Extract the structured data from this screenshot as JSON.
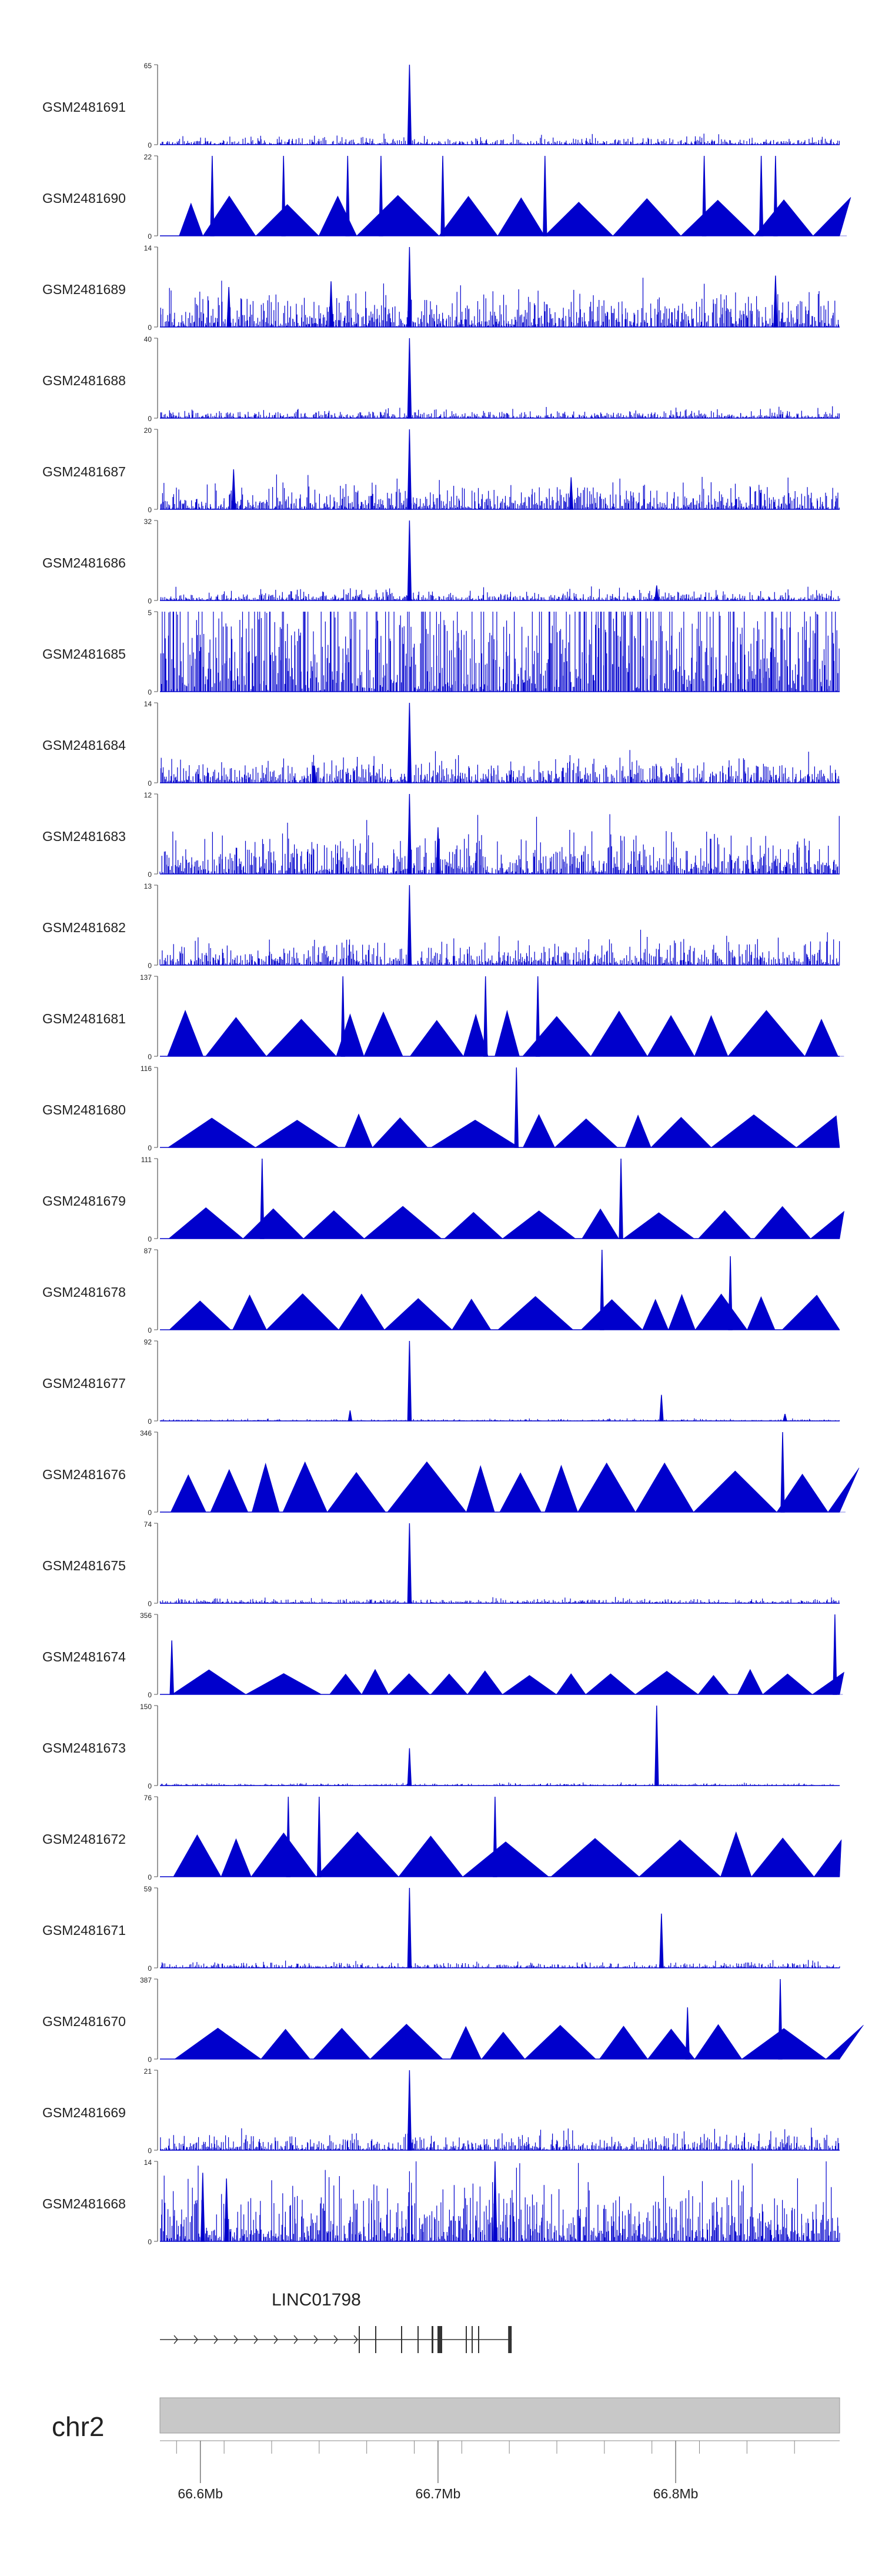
{
  "colors": {
    "track": "#0000CC",
    "axis": "#555555",
    "chrom_bar": "#C8C8C8",
    "gene": "#333333"
  },
  "chart_data": {
    "type": "area",
    "x_range_mb": [
      66.583,
      66.869
    ],
    "tracks": [
      {
        "name": "GSM2481691",
        "ymax": 65,
        "baseline": 3,
        "style": "dense",
        "peaks": [
          [
            66.688,
            65
          ]
        ]
      },
      {
        "name": "GSM2481690",
        "ymax": 22,
        "baseline": 10,
        "style": "triangles",
        "peaks": [
          [
            66.605,
            22
          ],
          [
            66.635,
            22
          ],
          [
            66.662,
            22
          ],
          [
            66.676,
            22
          ],
          [
            66.702,
            22
          ],
          [
            66.745,
            22
          ],
          [
            66.812,
            22
          ],
          [
            66.836,
            22
          ],
          [
            66.842,
            22
          ]
        ]
      },
      {
        "name": "GSM2481689",
        "ymax": 14,
        "baseline": 3,
        "style": "dense",
        "peaks": [
          [
            66.688,
            14
          ],
          [
            66.655,
            8
          ],
          [
            66.842,
            9
          ],
          [
            66.612,
            7
          ]
        ]
      },
      {
        "name": "GSM2481688",
        "ymax": 40,
        "baseline": 2,
        "style": "dense",
        "peaks": [
          [
            66.688,
            40
          ]
        ]
      },
      {
        "name": "GSM2481687",
        "ymax": 20,
        "baseline": 3,
        "style": "dense",
        "peaks": [
          [
            66.688,
            20
          ],
          [
            66.614,
            10
          ],
          [
            66.756,
            8
          ]
        ]
      },
      {
        "name": "GSM2481686",
        "ymax": 32,
        "baseline": 2,
        "style": "dense",
        "peaks": [
          [
            66.688,
            32
          ],
          [
            66.792,
            6
          ]
        ]
      },
      {
        "name": "GSM2481685",
        "ymax": 5,
        "baseline": 4,
        "style": "dense",
        "peaks": []
      },
      {
        "name": "GSM2481684",
        "ymax": 14,
        "baseline": 2,
        "style": "dense",
        "peaks": [
          [
            66.688,
            14
          ],
          [
            66.648,
            3
          ]
        ]
      },
      {
        "name": "GSM2481683",
        "ymax": 12,
        "baseline": 3,
        "style": "dense",
        "peaks": [
          [
            66.688,
            12
          ],
          [
            66.7,
            7
          ]
        ]
      },
      {
        "name": "GSM2481682",
        "ymax": 13,
        "baseline": 2,
        "style": "dense",
        "peaks": [
          [
            66.688,
            13
          ]
        ]
      },
      {
        "name": "GSM2481681",
        "ymax": 137,
        "baseline": 70,
        "style": "triangles",
        "peaks": [
          [
            66.66,
            137
          ],
          [
            66.72,
            137
          ],
          [
            66.742,
            137
          ]
        ]
      },
      {
        "name": "GSM2481680",
        "ymax": 116,
        "baseline": 45,
        "style": "triangles",
        "peaks": [
          [
            66.733,
            116
          ]
        ]
      },
      {
        "name": "GSM2481679",
        "ymax": 111,
        "baseline": 40,
        "style": "triangles",
        "peaks": [
          [
            66.626,
            111
          ],
          [
            66.777,
            111
          ]
        ]
      },
      {
        "name": "GSM2481678",
        "ymax": 87,
        "baseline": 35,
        "style": "triangles",
        "peaks": [
          [
            66.769,
            87
          ],
          [
            66.823,
            80
          ]
        ]
      },
      {
        "name": "GSM2481677",
        "ymax": 92,
        "baseline": 1,
        "style": "dense",
        "peaks": [
          [
            66.688,
            92
          ],
          [
            66.794,
            30
          ],
          [
            66.663,
            12
          ],
          [
            66.846,
            8
          ]
        ]
      },
      {
        "name": "GSM2481676",
        "ymax": 346,
        "baseline": 190,
        "style": "triangles",
        "peaks": [
          [
            66.845,
            346
          ]
        ]
      },
      {
        "name": "GSM2481675",
        "ymax": 74,
        "baseline": 2,
        "style": "dense",
        "peaks": [
          [
            66.688,
            74
          ]
        ]
      },
      {
        "name": "GSM2481674",
        "ymax": 356,
        "baseline": 100,
        "style": "triangles",
        "peaks": [
          [
            66.588,
            240
          ],
          [
            66.867,
            356
          ]
        ]
      },
      {
        "name": "GSM2481673",
        "ymax": 150,
        "baseline": 2,
        "style": "dense",
        "peaks": [
          [
            66.688,
            70
          ],
          [
            66.792,
            150
          ]
        ]
      },
      {
        "name": "GSM2481672",
        "ymax": 76,
        "baseline": 38,
        "style": "triangles",
        "peaks": [
          [
            66.637,
            76
          ],
          [
            66.65,
            76
          ],
          [
            66.724,
            76
          ]
        ]
      },
      {
        "name": "GSM2481671",
        "ymax": 59,
        "baseline": 2,
        "style": "dense",
        "peaks": [
          [
            66.688,
            59
          ],
          [
            66.794,
            40
          ]
        ]
      },
      {
        "name": "GSM2481670",
        "ymax": 387,
        "baseline": 150,
        "style": "triangles",
        "peaks": [
          [
            66.805,
            250
          ],
          [
            66.844,
            387
          ]
        ]
      },
      {
        "name": "GSM2481669",
        "ymax": 21,
        "baseline": 2,
        "style": "dense",
        "peaks": [
          [
            66.688,
            21
          ]
        ]
      },
      {
        "name": "GSM2481668",
        "ymax": 14,
        "baseline": 5,
        "style": "dense",
        "peaks": [
          [
            66.601,
            12
          ],
          [
            66.611,
            11
          ],
          [
            66.724,
            14
          ]
        ]
      }
    ],
    "gene": {
      "name": "LINC01798",
      "start_mb": 66.583,
      "end_mb": 66.731
    },
    "chromosome": "chr2",
    "ticks": [
      {
        "value": 66.6,
        "label": "66.6Mb"
      },
      {
        "value": 66.7,
        "label": "66.7Mb"
      },
      {
        "value": 66.8,
        "label": "66.8Mb"
      }
    ]
  }
}
